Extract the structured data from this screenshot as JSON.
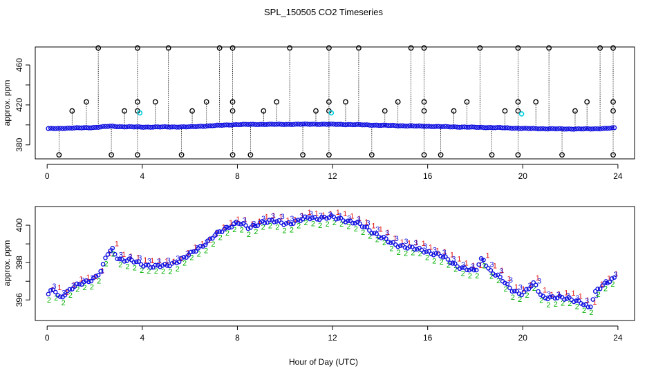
{
  "chart_data": [
    {
      "type": "scatter",
      "title": "SPL_150505  CO2 Timeseries",
      "ylabel": "approx. ppm",
      "xlim": [
        -0.5,
        24.7
      ],
      "ylim": [
        366,
        478
      ],
      "x_ticks": [
        0,
        4,
        8,
        12,
        16,
        20,
        24
      ],
      "y_ticks": [
        380,
        400,
        420,
        440,
        460
      ],
      "y_tick_labels": [
        "380",
        "",
        "420",
        "",
        "460"
      ],
      "main_series": {
        "name": "CO2",
        "x_start": 0.05,
        "x_end": 23.85,
        "x_step": 0.1,
        "anchors": [
          [
            0,
            396.2
          ],
          [
            1,
            396.8
          ],
          [
            2,
            397.4
          ],
          [
            2.7,
            398.8
          ],
          [
            3,
            398.2
          ],
          [
            4,
            397.8
          ],
          [
            5,
            397.9
          ],
          [
            6,
            398.0
          ],
          [
            7,
            399.3
          ],
          [
            8,
            400.3
          ],
          [
            9,
            400.5
          ],
          [
            10,
            400.5
          ],
          [
            11,
            400.7
          ],
          [
            12,
            400.6
          ],
          [
            13,
            400.2
          ],
          [
            14,
            399.6
          ],
          [
            15,
            399.1
          ],
          [
            16,
            398.6
          ],
          [
            17,
            398.0
          ],
          [
            18,
            397.6
          ],
          [
            19,
            397.2
          ],
          [
            20,
            396.5
          ],
          [
            21,
            396.1
          ],
          [
            22,
            395.9
          ],
          [
            23,
            396.0
          ],
          [
            24,
            397.1
          ]
        ],
        "color": "#1010e0",
        "edge": "#f0a020"
      },
      "spikes": [
        {
          "x": 0.5,
          "levels": [
            370,
            396
          ]
        },
        {
          "x": 1.05,
          "levels": [
            396,
            414
          ]
        },
        {
          "x": 1.65,
          "levels": [
            397,
            423
          ]
        },
        {
          "x": 2.15,
          "levels": [
            397,
            477
          ]
        },
        {
          "x": 2.7,
          "levels": [
            370,
            399
          ]
        },
        {
          "x": 3.25,
          "levels": [
            398,
            414
          ]
        },
        {
          "x": 3.8,
          "levels": [
            370,
            414,
            423,
            477
          ]
        },
        {
          "x": 4.55,
          "levels": [
            398,
            423
          ]
        },
        {
          "x": 5.1,
          "levels": [
            398,
            477
          ]
        },
        {
          "x": 5.65,
          "levels": [
            370,
            398
          ]
        },
        {
          "x": 6.1,
          "levels": [
            398,
            414
          ]
        },
        {
          "x": 6.7,
          "levels": [
            399,
            423
          ]
        },
        {
          "x": 7.25,
          "levels": [
            399,
            477
          ]
        },
        {
          "x": 7.8,
          "levels": [
            370,
            414,
            423,
            477
          ]
        },
        {
          "x": 8.55,
          "levels": [
            370,
            400
          ]
        },
        {
          "x": 9.1,
          "levels": [
            400,
            414
          ]
        },
        {
          "x": 9.65,
          "levels": [
            400,
            423
          ]
        },
        {
          "x": 10.2,
          "levels": [
            400,
            477
          ]
        },
        {
          "x": 10.75,
          "levels": [
            370,
            400
          ]
        },
        {
          "x": 11.3,
          "levels": [
            400,
            414
          ]
        },
        {
          "x": 11.85,
          "levels": [
            370,
            414,
            423,
            477
          ]
        },
        {
          "x": 12.55,
          "levels": [
            400,
            423
          ]
        },
        {
          "x": 13.1,
          "levels": [
            400,
            477
          ]
        },
        {
          "x": 13.65,
          "levels": [
            370,
            399
          ]
        },
        {
          "x": 14.2,
          "levels": [
            399,
            414
          ]
        },
        {
          "x": 14.75,
          "levels": [
            399,
            423
          ]
        },
        {
          "x": 15.3,
          "levels": [
            399,
            477
          ]
        },
        {
          "x": 15.85,
          "levels": [
            370,
            414,
            423,
            477
          ]
        },
        {
          "x": 16.55,
          "levels": [
            370,
            398
          ]
        },
        {
          "x": 17.1,
          "levels": [
            398,
            414
          ]
        },
        {
          "x": 17.65,
          "levels": [
            397,
            423
          ]
        },
        {
          "x": 18.2,
          "levels": [
            397,
            477
          ]
        },
        {
          "x": 18.7,
          "levels": [
            370,
            397
          ]
        },
        {
          "x": 19.25,
          "levels": [
            397,
            414
          ]
        },
        {
          "x": 19.8,
          "levels": [
            370,
            414,
            423,
            477
          ]
        },
        {
          "x": 20.55,
          "levels": [
            396,
            423
          ]
        },
        {
          "x": 21.1,
          "levels": [
            396,
            477
          ]
        },
        {
          "x": 21.65,
          "levels": [
            370,
            396
          ]
        },
        {
          "x": 22.2,
          "levels": [
            396,
            414
          ]
        },
        {
          "x": 22.7,
          "levels": [
            396,
            423
          ]
        },
        {
          "x": 23.25,
          "levels": [
            397,
            477
          ]
        },
        {
          "x": 23.8,
          "levels": [
            370,
            414,
            423,
            477
          ]
        }
      ],
      "highlight_points": [
        {
          "x": 3.9,
          "y": 412,
          "color": "#00d0e0"
        },
        {
          "x": 11.95,
          "y": 412,
          "color": "#00d0e0"
        },
        {
          "x": 19.95,
          "y": 411,
          "color": "#00d0e0"
        }
      ]
    },
    {
      "type": "scatter",
      "ylabel": "approx. ppm",
      "xlabel": "Hour of Day (UTC)",
      "xlim": [
        -0.5,
        24.7
      ],
      "ylim": [
        394.9,
        401.0
      ],
      "x_ticks": [
        0,
        4,
        8,
        12,
        16,
        20,
        24
      ],
      "y_ticks": [
        396,
        397,
        398,
        399,
        400
      ],
      "y_tick_labels": [
        "396",
        "",
        "398",
        "",
        "400"
      ],
      "series_labels": [
        "1",
        "2",
        "3"
      ],
      "series_colors": [
        "#e01010",
        "#00b000",
        "#1010e0"
      ],
      "marker_color": "#1010e0",
      "x_start": 0.05,
      "x_end": 23.85,
      "x_step": 0.1,
      "anchors": [
        [
          0,
          396.2
        ],
        [
          0.3,
          396.6
        ],
        [
          0.5,
          396.1
        ],
        [
          0.8,
          396.4
        ],
        [
          1,
          396.6
        ],
        [
          1.5,
          396.9
        ],
        [
          2,
          397.2
        ],
        [
          2.3,
          397.6
        ],
        [
          2.5,
          398.4
        ],
        [
          2.75,
          398.7
        ],
        [
          3,
          398.2
        ],
        [
          3.5,
          398.1
        ],
        [
          4,
          397.9
        ],
        [
          4.5,
          397.8
        ],
        [
          5,
          397.8
        ],
        [
          5.5,
          398.1
        ],
        [
          6,
          398.4
        ],
        [
          6.5,
          398.9
        ],
        [
          7,
          399.4
        ],
        [
          7.5,
          399.8
        ],
        [
          8,
          400.2
        ],
        [
          8.5,
          399.8
        ],
        [
          9,
          400.2
        ],
        [
          9.5,
          400.2
        ],
        [
          10,
          400.1
        ],
        [
          10.5,
          400.2
        ],
        [
          11,
          400.4
        ],
        [
          11.5,
          400.4
        ],
        [
          12,
          400.4
        ],
        [
          12.5,
          400.3
        ],
        [
          13,
          400.1
        ],
        [
          13.5,
          399.8
        ],
        [
          14,
          399.4
        ],
        [
          14.5,
          399.0
        ],
        [
          15,
          398.9
        ],
        [
          15.5,
          398.7
        ],
        [
          16,
          398.6
        ],
        [
          16.5,
          398.4
        ],
        [
          17,
          398.0
        ],
        [
          17.5,
          397.7
        ],
        [
          18,
          397.5
        ],
        [
          18.3,
          398.3
        ],
        [
          18.6,
          397.6
        ],
        [
          19,
          397.2
        ],
        [
          19.5,
          396.6
        ],
        [
          20,
          396.3
        ],
        [
          20.5,
          396.9
        ],
        [
          20.8,
          396.2
        ],
        [
          21.2,
          396.1
        ],
        [
          22,
          396.1
        ],
        [
          22.5,
          395.8
        ],
        [
          22.8,
          395.5
        ],
        [
          23.1,
          396.6
        ],
        [
          23.5,
          396.9
        ],
        [
          24,
          397.2
        ]
      ]
    }
  ]
}
